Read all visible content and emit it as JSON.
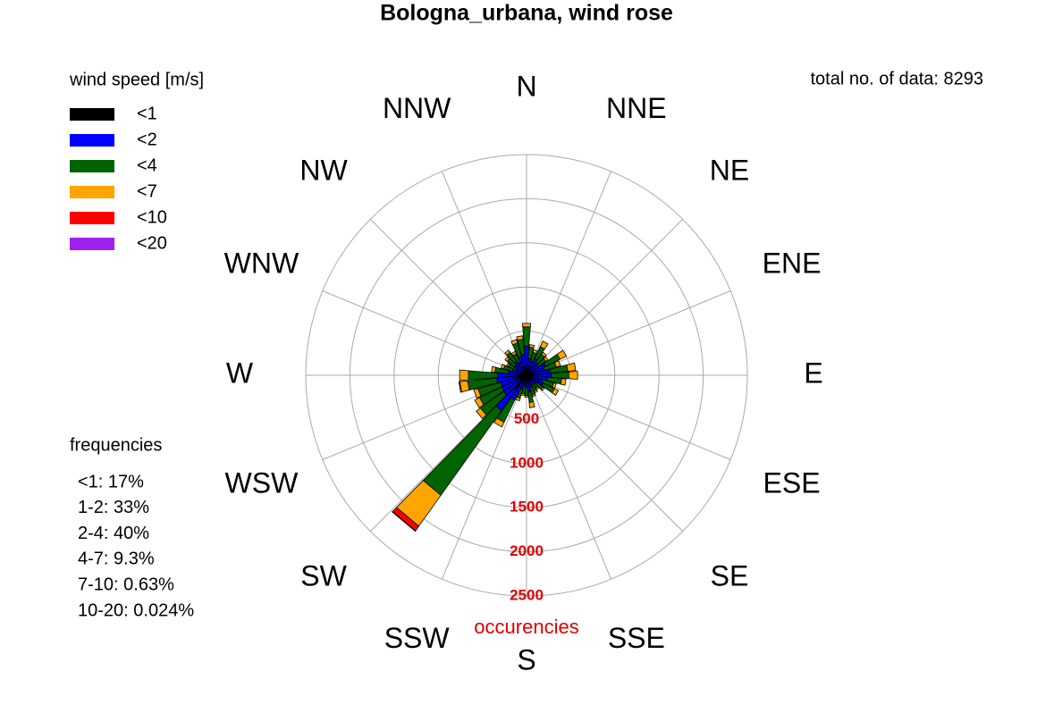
{
  "chart_data": {
    "type": "windrose",
    "title": "Bologna_urbana, wind rose",
    "total_label": "total no. of data: 8293",
    "legend_title": "wind speed [m/s]",
    "compass_labels": [
      "N",
      "NNE",
      "NE",
      "ENE",
      "E",
      "ESE",
      "SE",
      "SSE",
      "S",
      "SSW",
      "SW",
      "WSW",
      "W",
      "WNW",
      "NW",
      "NNW"
    ],
    "r_label": "occurencies",
    "rlim": [
      0,
      2500
    ],
    "rticks": [
      500,
      1000,
      1500,
      2000,
      2500
    ],
    "grid": true,
    "frequencies_title": "frequencies",
    "frequencies": [
      "<1: 17%",
      "1-2: 33%",
      "2-4: 40%",
      "4-7: 9.3%",
      "7-10: 0.63%",
      "10-20: 0.024%"
    ],
    "series": [
      {
        "name": "<1",
        "color": "#000000",
        "values": [
          90,
          50,
          45,
          60,
          50,
          45,
          70,
          60,
          80,
          80,
          70,
          50,
          60,
          40,
          30,
          30,
          40,
          50,
          40,
          30,
          45,
          90,
          200,
          90,
          90,
          90,
          100,
          100,
          60,
          45,
          40,
          45,
          50,
          45,
          60,
          70
        ]
      },
      {
        "name": "<2",
        "color": "#0000ff",
        "values": [
          240,
          140,
          120,
          150,
          130,
          120,
          170,
          150,
          190,
          200,
          170,
          140,
          150,
          100,
          80,
          90,
          100,
          140,
          100,
          90,
          120,
          220,
          290,
          230,
          220,
          210,
          240,
          230,
          150,
          120,
          100,
          120,
          140,
          120,
          160,
          170
        ]
      },
      {
        "name": "<4",
        "color": "#006400",
        "values": [
          220,
          130,
          105,
          150,
          110,
          105,
          180,
          140,
          200,
          200,
          160,
          130,
          140,
          90,
          70,
          80,
          90,
          120,
          90,
          90,
          105,
          280,
          1180,
          320,
          280,
          270,
          330,
          330,
          150,
          105,
          90,
          105,
          130,
          105,
          160,
          170
        ]
      },
      {
        "name": "<7",
        "color": "#ffa500",
        "values": [
          40,
          30,
          30,
          70,
          30,
          30,
          80,
          50,
          90,
          100,
          50,
          30,
          50,
          20,
          20,
          20,
          20,
          60,
          20,
          20,
          30,
          60,
          430,
          60,
          60,
          50,
          90,
          100,
          40,
          30,
          20,
          30,
          30,
          30,
          40,
          40
        ]
      },
      {
        "name": "<10",
        "color": "#ff0000",
        "values": [
          0,
          0,
          0,
          0,
          0,
          0,
          0,
          0,
          0,
          0,
          0,
          0,
          0,
          0,
          0,
          0,
          0,
          0,
          0,
          0,
          0,
          0,
          65,
          0,
          0,
          0,
          10,
          0,
          0,
          0,
          0,
          0,
          0,
          0,
          0,
          0
        ]
      },
      {
        "name": "<20",
        "color": "#a020f0",
        "values": [
          0,
          0,
          0,
          0,
          0,
          0,
          0,
          0,
          0,
          0,
          0,
          0,
          0,
          0,
          0,
          0,
          0,
          0,
          0,
          0,
          0,
          0,
          5,
          0,
          0,
          0,
          0,
          0,
          0,
          0,
          0,
          0,
          0,
          0,
          0,
          0
        ]
      }
    ]
  }
}
